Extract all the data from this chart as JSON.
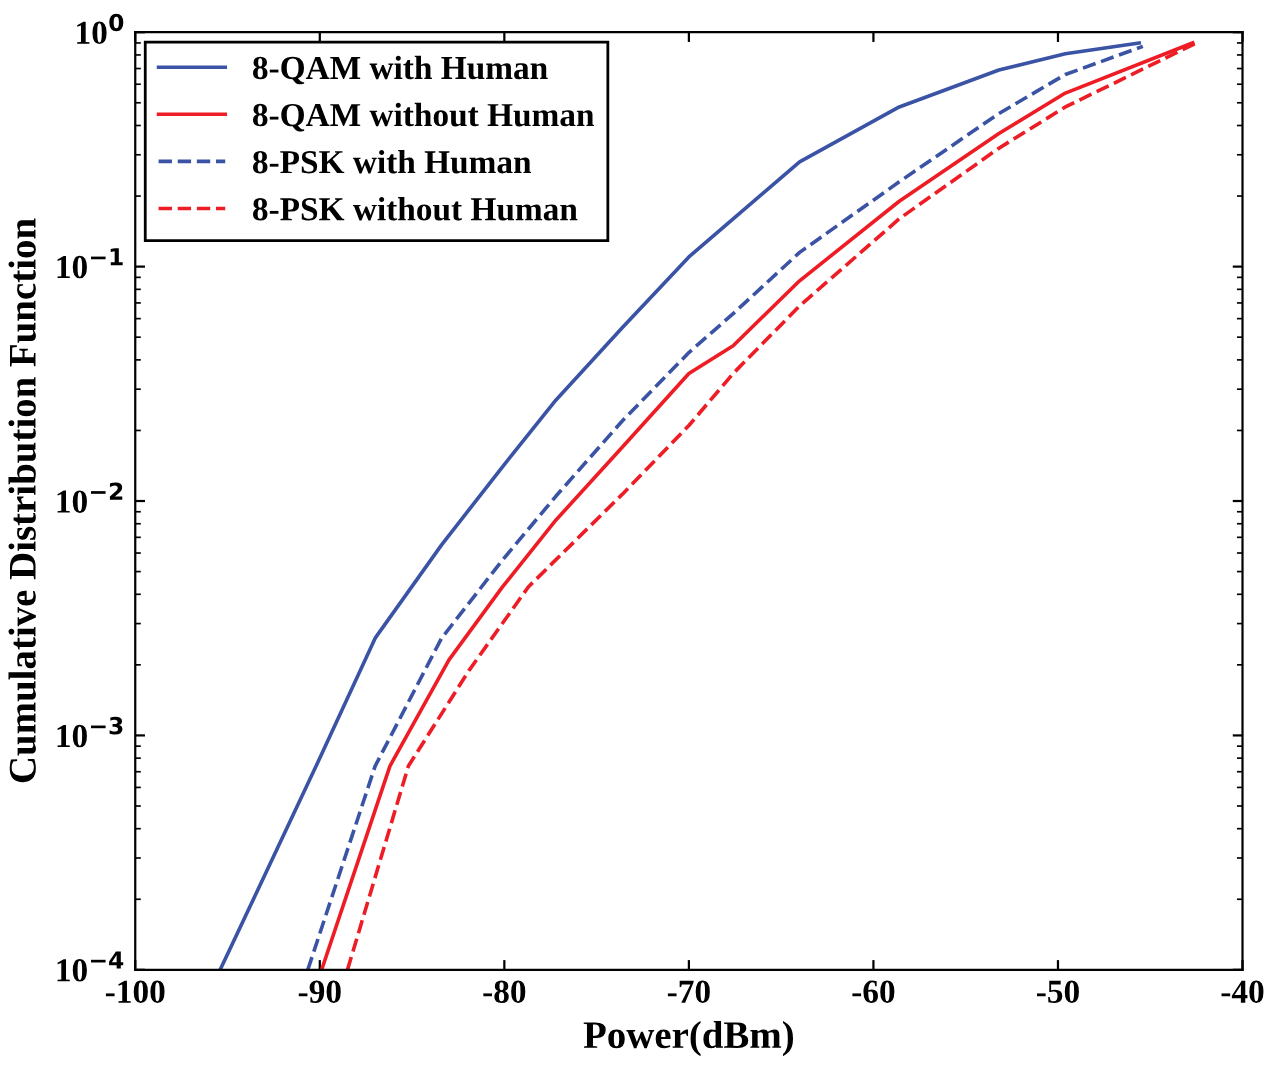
{
  "chart_data": {
    "type": "line",
    "xlabel": "Power(dBm)",
    "ylabel": "Cumulative Distribution Function",
    "log": "y",
    "grid": false,
    "legend": "top left",
    "xlim": [
      -100,
      -40
    ],
    "xticks": [
      -100,
      -90,
      -80,
      -70,
      -60,
      -50,
      -40
    ],
    "ylim": [
      0.0001,
      1
    ],
    "yticks": [
      {
        "value": 0.0001,
        "label": "10$^{−4}$"
      },
      {
        "value": 0.001,
        "label": "10$^{−3}$"
      },
      {
        "value": 0.01,
        "label": "10$^{−2}$"
      },
      {
        "value": 0.1,
        "label": "10$^{−1}$"
      },
      {
        "value": 1,
        "label": "10$^{0}$"
      }
    ],
    "series": [
      {
        "name": "8-QAM with Human",
        "color": "#3a53a4",
        "line_style": "solid",
        "x": [
          -95.4,
          -90.2,
          -87.0,
          -83.4,
          -80.1,
          -77.2,
          -73.6,
          -70.0,
          -64.0,
          -58.6,
          -53.2,
          -49.6,
          -45.6
        ],
        "values": [
          0.0001,
          0.00074,
          0.0026,
          0.0065,
          0.014,
          0.027,
          0.055,
          0.11,
          0.28,
          0.48,
          0.69,
          0.81,
          0.9
        ]
      },
      {
        "name": "8-QAM without Human",
        "color": "#ee1c24",
        "line_style": "solid",
        "x": [
          -89.9,
          -86.2,
          -83.0,
          -80.1,
          -77.2,
          -73.6,
          -70.0,
          -67.6,
          -64.0,
          -58.6,
          -53.2,
          -49.6,
          -42.7
        ],
        "values": [
          0.0001,
          0.00074,
          0.0021,
          0.0043,
          0.0083,
          0.017,
          0.035,
          0.046,
          0.087,
          0.19,
          0.37,
          0.55,
          0.9
        ]
      },
      {
        "name": "8-PSK with Human",
        "color": "#3a53a4",
        "line_style": "dashed",
        "x": [
          -90.65,
          -87.0,
          -83.4,
          -80.1,
          -77.2,
          -73.6,
          -70.0,
          -67.6,
          -64.0,
          -58.6,
          -53.2,
          -49.6,
          -45.4
        ],
        "values": [
          0.0001,
          0.00074,
          0.0026,
          0.0056,
          0.0105,
          0.022,
          0.043,
          0.063,
          0.115,
          0.23,
          0.45,
          0.66,
          0.87
        ]
      },
      {
        "name": "8-PSK without Human",
        "color": "#ee1c24",
        "line_style": "dashed",
        "x": [
          -88.5,
          -85.2,
          -81.9,
          -78.7,
          -73.6,
          -70.0,
          -67.6,
          -64.0,
          -58.6,
          -53.2,
          -49.6,
          -42.5
        ],
        "values": [
          0.0001,
          0.00074,
          0.0019,
          0.0043,
          0.0107,
          0.021,
          0.035,
          0.068,
          0.16,
          0.32,
          0.48,
          0.9
        ]
      }
    ]
  }
}
